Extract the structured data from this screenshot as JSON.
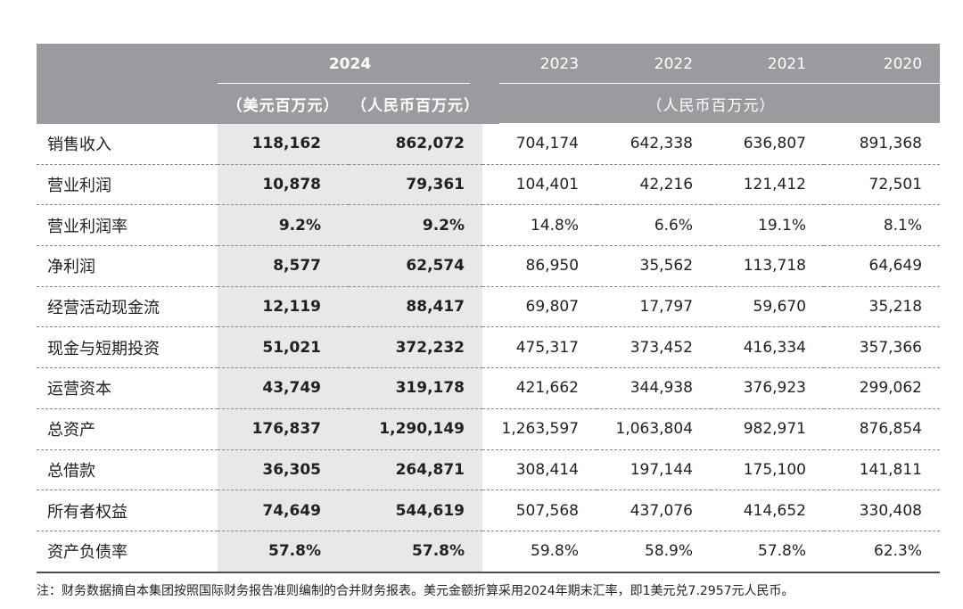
{
  "header": {
    "year_2024": "2024",
    "year_2023": "2023",
    "year_2022": "2022",
    "year_2021": "2021",
    "year_2020": "2020",
    "unit_usd": "（美元百万元）",
    "unit_cny": "（人民币百万元）",
    "unit_hist": "（人民币百万元）"
  },
  "rows": [
    {
      "label": "销售收入",
      "usd_2024": "118,162",
      "cny_2024": "862,072",
      "y2023": "704,174",
      "y2022": "642,338",
      "y2021": "636,807",
      "y2020": "891,368"
    },
    {
      "label": "营业利润",
      "usd_2024": "10,878",
      "cny_2024": "79,361",
      "y2023": "104,401",
      "y2022": "42,216",
      "y2021": "121,412",
      "y2020": "72,501"
    },
    {
      "label": "营业利润率",
      "usd_2024": "9.2%",
      "cny_2024": "9.2%",
      "y2023": "14.8%",
      "y2022": "6.6%",
      "y2021": "19.1%",
      "y2020": "8.1%"
    },
    {
      "label": "净利润",
      "usd_2024": "8,577",
      "cny_2024": "62,574",
      "y2023": "86,950",
      "y2022": "35,562",
      "y2021": "113,718",
      "y2020": "64,649"
    },
    {
      "label": "经营活动现金流",
      "usd_2024": "12,119",
      "cny_2024": "88,417",
      "y2023": "69,807",
      "y2022": "17,797",
      "y2021": "59,670",
      "y2020": "35,218"
    },
    {
      "label": "现金与短期投资",
      "usd_2024": "51,021",
      "cny_2024": "372,232",
      "y2023": "475,317",
      "y2022": "373,452",
      "y2021": "416,334",
      "y2020": "357,366"
    },
    {
      "label": "运营资本",
      "usd_2024": "43,749",
      "cny_2024": "319,178",
      "y2023": "421,662",
      "y2022": "344,938",
      "y2021": "376,923",
      "y2020": "299,062"
    },
    {
      "label": "总资产",
      "usd_2024": "176,837",
      "cny_2024": "1,290,149",
      "y2023": "1,263,597",
      "y2022": "1,063,804",
      "y2021": "982,971",
      "y2020": "876,854"
    },
    {
      "label": "总借款",
      "usd_2024": "36,305",
      "cny_2024": "264,871",
      "y2023": "308,414",
      "y2022": "197,144",
      "y2021": "175,100",
      "y2020": "141,811"
    },
    {
      "label": "所有者权益",
      "usd_2024": "74,649",
      "cny_2024": "544,619",
      "y2023": "507,568",
      "y2022": "437,076",
      "y2021": "414,652",
      "y2020": "330,408"
    },
    {
      "label": "资产负债率",
      "usd_2024": "57.8%",
      "cny_2024": "57.8%",
      "y2023": "59.8%",
      "y2022": "58.9%",
      "y2021": "57.8%",
      "y2020": "62.3%"
    }
  ],
  "footnote": "注：财务数据摘自本集团按照国际财务报告准则编制的合并财务报表。美元金额折算采用2024年期末汇率，即1美元兑7.2957元人民币。"
}
